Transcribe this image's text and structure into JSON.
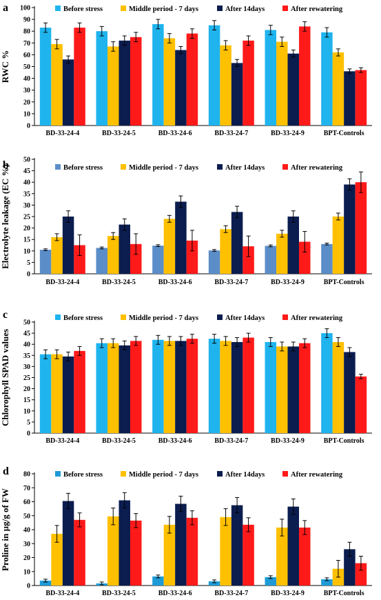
{
  "colors": {
    "before_a": "#1fb4ee",
    "before_b": "#5b8ec9",
    "before_d": "#1e9bd7",
    "middle": "#ffc000",
    "after14": "#0b1d4f",
    "rewater": "#ff1a1a"
  },
  "chart_data": [
    {
      "label": "a",
      "type": "bar",
      "ylabel": "RWC %",
      "ylim": [
        0,
        100
      ],
      "yticks": [
        0,
        10,
        20,
        30,
        40,
        50,
        60,
        70,
        80,
        90,
        100
      ],
      "grid": false,
      "legend_position": "top",
      "categories": [
        "BD-33-24-4",
        "BD-33-24-5",
        "BD-33-24-6",
        "BD-33-24-7",
        "BD-33-24-9",
        "BPT-Controls"
      ],
      "series": [
        {
          "name": "Before stress",
          "color_key": "before_a",
          "values": [
            83,
            80,
            86,
            85,
            81,
            79
          ],
          "errors": [
            4,
            4,
            4,
            4,
            4,
            4
          ]
        },
        {
          "name": "Middle period - 7 days",
          "color_key": "middle",
          "values": [
            69,
            67,
            74,
            68,
            71,
            62
          ],
          "errors": [
            4,
            4,
            4,
            4,
            4,
            3
          ]
        },
        {
          "name": "After 14days",
          "color_key": "after14",
          "values": [
            56,
            72,
            64,
            53,
            61,
            46
          ],
          "errors": [
            3,
            4,
            3,
            3,
            3,
            2
          ]
        },
        {
          "name": "After rewatering",
          "color_key": "rewater",
          "values": [
            83,
            75,
            78,
            72,
            84,
            47
          ],
          "errors": [
            4,
            4,
            4,
            4,
            4,
            2
          ]
        }
      ]
    },
    {
      "label": "b",
      "type": "bar",
      "ylabel": "Electrolyte leakage (EC %)",
      "ylim": [
        0,
        50
      ],
      "yticks": [
        0,
        5,
        10,
        15,
        20,
        25,
        30,
        35,
        40,
        45,
        50
      ],
      "grid": false,
      "legend_position": "top",
      "categories": [
        "BD-33-24-4",
        "BD-33-24-5",
        "BD-33-24-6",
        "BD-33-24-7",
        "BD-33-24-9",
        "BPT-Controls"
      ],
      "series": [
        {
          "name": "Before stress",
          "color_key": "before_b",
          "values": [
            10.5,
            11.3,
            12.3,
            10.2,
            12.2,
            13
          ],
          "errors": [
            0.4,
            0.4,
            0.4,
            0.4,
            0.4,
            0.4
          ]
        },
        {
          "name": "Middle period - 7 days",
          "color_key": "middle",
          "values": [
            16,
            16.5,
            24,
            19.5,
            17.5,
            25
          ],
          "errors": [
            1.5,
            1.5,
            1.5,
            1.5,
            1.5,
            1.5
          ]
        },
        {
          "name": "After 14days",
          "color_key": "after14",
          "values": [
            25,
            21.5,
            31.5,
            27,
            25,
            39
          ],
          "errors": [
            2.5,
            2.5,
            2.5,
            2.5,
            2.5,
            2.5
          ]
        },
        {
          "name": "After rewatering",
          "color_key": "rewater",
          "values": [
            12.5,
            13,
            14.5,
            12,
            14,
            40
          ],
          "errors": [
            4.5,
            4.5,
            4.5,
            4.5,
            4.5,
            4.5
          ]
        }
      ]
    },
    {
      "label": "c",
      "type": "bar",
      "ylabel": "Chlorophyll SPAD values",
      "ylim": [
        0,
        50
      ],
      "yticks": [
        0,
        5,
        10,
        15,
        20,
        25,
        30,
        35,
        40,
        45,
        50
      ],
      "grid": false,
      "legend_position": "top",
      "categories": [
        "BD-33-24-4",
        "BD-33-24-5",
        "BD-33-24-6",
        "BD-33-24-7",
        "BD-33-24-9",
        "BPT-Controls"
      ],
      "series": [
        {
          "name": "Before stress",
          "color_key": "before_a",
          "values": [
            35.5,
            40.5,
            42,
            42.5,
            41,
            45
          ],
          "errors": [
            2,
            2,
            2,
            2,
            2,
            2
          ]
        },
        {
          "name": "Middle period - 7 days",
          "color_key": "middle",
          "values": [
            35.5,
            40.5,
            41.5,
            41.5,
            39,
            41
          ],
          "errors": [
            2,
            2,
            2,
            2,
            2,
            2
          ]
        },
        {
          "name": "After 14days",
          "color_key": "after14",
          "values": [
            34.5,
            39.5,
            41.5,
            41,
            39,
            36.5
          ],
          "errors": [
            2,
            2,
            2,
            2,
            2,
            2
          ]
        },
        {
          "name": "After rewatering",
          "color_key": "rewater",
          "values": [
            37,
            41.5,
            42.5,
            43,
            40.5,
            25.5
          ],
          "errors": [
            2,
            2,
            2,
            2,
            2,
            1
          ]
        }
      ]
    },
    {
      "label": "d",
      "type": "bar",
      "ylabel": "Proline in µg/g of FW",
      "ylim": [
        0,
        80
      ],
      "yticks": [
        0,
        10,
        20,
        30,
        40,
        50,
        60,
        70,
        80
      ],
      "grid": false,
      "legend_position": "top",
      "categories": [
        "BD-33-24-4",
        "BD-33-24-5",
        "BD-33-24-6",
        "BD-33-24-7",
        "BD-33-24-9",
        "BPT-Controls"
      ],
      "series": [
        {
          "name": "Before stress",
          "color_key": "before_d",
          "values": [
            3.5,
            1.5,
            6.5,
            3,
            6,
            4.5
          ],
          "errors": [
            1,
            1,
            1,
            1,
            1,
            1
          ]
        },
        {
          "name": "Middle period - 7 days",
          "color_key": "middle",
          "values": [
            37,
            49.5,
            43.5,
            49,
            41.5,
            12
          ],
          "errors": [
            6,
            6,
            6,
            6,
            6,
            6
          ]
        },
        {
          "name": "After 14days",
          "color_key": "after14",
          "values": [
            60.5,
            61,
            58.5,
            57.5,
            56.5,
            26
          ],
          "errors": [
            5.5,
            5.5,
            5.5,
            5.5,
            5.5,
            5
          ]
        },
        {
          "name": "After rewatering",
          "color_key": "rewater",
          "values": [
            47,
            46.5,
            48.5,
            43.5,
            41.5,
            16
          ],
          "errors": [
            5,
            5,
            5,
            5,
            5,
            5
          ]
        }
      ]
    }
  ]
}
